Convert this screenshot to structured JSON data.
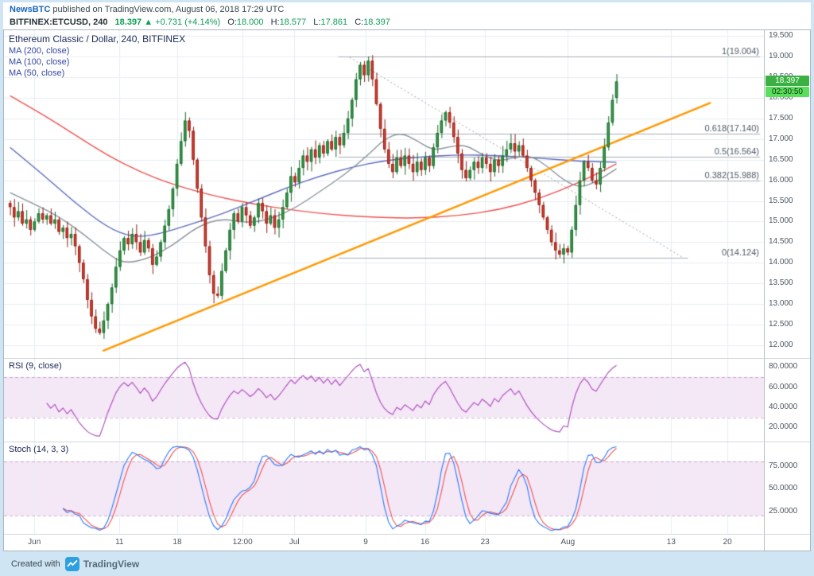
{
  "frame": {
    "published": {
      "brand": "NewsBTC",
      "text": " published on TradingView.com, August 06, 2018 17:29 UTC"
    },
    "footer": {
      "created_with": "Created with",
      "logo_text": "TradingView"
    },
    "bg_color": "#cfe5f4"
  },
  "symbol_bar": {
    "symbol": "BITFINEX:ETCUSD, 240",
    "last": "18.397",
    "arrow": "▲",
    "change": "+0.731 (+4.14%)",
    "o_label": "O:",
    "o": "18.000",
    "h_label": "H:",
    "h": "18.577",
    "l_label": "L:",
    "l": "17.861",
    "c_label": "C:",
    "c": "18.397",
    "green": "#0f9d58"
  },
  "chart_data": {
    "type": "candlestick",
    "title": "Ethereum Classic / Dollar, 240, BITFINEX",
    "y_range": [
      11.69,
      19.64
    ],
    "y_tick_labels": [
      "19.500",
      "19.000",
      "18.500",
      "18.000",
      "17.500",
      "17.000",
      "16.500",
      "16.000",
      "15.500",
      "15.000",
      "14.500",
      "14.000",
      "13.500",
      "13.000",
      "12.500",
      "12.000"
    ],
    "x_ticks": [
      {
        "label": "Jun",
        "x": 0.04
      },
      {
        "label": "11",
        "x": 0.152
      },
      {
        "label": "18",
        "x": 0.228
      },
      {
        "label": "12:00",
        "x": 0.314
      },
      {
        "label": "Jul",
        "x": 0.382
      },
      {
        "label": "9",
        "x": 0.476
      },
      {
        "label": "16",
        "x": 0.554
      },
      {
        "label": "23",
        "x": 0.633
      },
      {
        "label": "Aug",
        "x": 0.742
      },
      {
        "label": "13",
        "x": 0.878
      },
      {
        "label": "20",
        "x": 0.952
      }
    ],
    "candle_span": [
      0.008,
      0.806
    ],
    "first_open": 15.45,
    "closes": [
      15.35,
      15.1,
      15.25,
      14.95,
      15.05,
      14.8,
      15.0,
      15.2,
      15.05,
      15.15,
      14.95,
      15.05,
      14.75,
      14.85,
      14.6,
      14.7,
      14.4,
      14.0,
      13.6,
      13.1,
      12.7,
      12.4,
      12.3,
      12.6,
      13.0,
      13.4,
      13.9,
      14.3,
      14.6,
      14.45,
      14.7,
      14.5,
      14.25,
      14.55,
      14.35,
      13.95,
      14.15,
      14.5,
      14.9,
      15.3,
      15.8,
      16.4,
      16.95,
      17.45,
      17.2,
      16.5,
      15.8,
      15.1,
      14.4,
      13.7,
      13.25,
      13.2,
      13.8,
      14.3,
      14.8,
      15.2,
      15.0,
      15.35,
      15.15,
      14.9,
      15.1,
      15.45,
      15.25,
      14.95,
      15.15,
      14.85,
      15.05,
      15.35,
      15.7,
      16.1,
      15.95,
      16.3,
      16.6,
      16.45,
      16.75,
      16.55,
      16.85,
      16.65,
      16.95,
      16.75,
      17.05,
      16.85,
      17.15,
      17.5,
      17.95,
      18.45,
      18.8,
      18.55,
      18.9,
      18.45,
      17.85,
      17.25,
      16.75,
      16.4,
      16.2,
      16.55,
      16.35,
      16.6,
      16.4,
      16.2,
      16.45,
      16.25,
      16.55,
      16.35,
      16.8,
      17.15,
      17.45,
      17.65,
      17.4,
      17.05,
      16.65,
      16.25,
      16.05,
      16.25,
      16.45,
      16.3,
      16.55,
      16.4,
      16.2,
      16.5,
      16.35,
      16.6,
      16.75,
      16.9,
      16.7,
      16.85,
      16.6,
      16.3,
      16.0,
      15.7,
      15.4,
      15.1,
      14.8,
      14.5,
      14.3,
      14.2,
      14.35,
      14.25,
      14.8,
      15.4,
      16.0,
      16.45,
      16.3,
      16.0,
      15.9,
      16.3,
      16.8,
      17.4,
      17.95,
      18.4
    ],
    "last_candle": {
      "o": 18.0,
      "h": 18.577,
      "l": 17.861,
      "c": 18.397
    },
    "extremes": [
      {
        "i": 22,
        "low": 12.25
      },
      {
        "i": 88,
        "high": 19.004
      },
      {
        "i": 135,
        "low": 14.124
      }
    ],
    "ma": [
      {
        "name": "MA (200, close)",
        "color": "#ef5350",
        "points": [
          [
            0,
            18.05
          ],
          [
            8,
            17.6
          ],
          [
            16,
            17.1
          ],
          [
            24,
            16.6
          ],
          [
            32,
            16.2
          ],
          [
            40,
            15.9
          ],
          [
            50,
            15.62
          ],
          [
            60,
            15.42
          ],
          [
            70,
            15.27
          ],
          [
            80,
            15.16
          ],
          [
            90,
            15.1
          ],
          [
            100,
            15.08
          ],
          [
            110,
            15.14
          ],
          [
            120,
            15.28
          ],
          [
            130,
            15.55
          ],
          [
            140,
            15.95
          ],
          [
            149,
            16.4
          ]
        ]
      },
      {
        "name": "MA (100, close)",
        "color": "#5c6bc0",
        "points": [
          [
            0,
            16.8
          ],
          [
            8,
            16.15
          ],
          [
            16,
            15.45
          ],
          [
            24,
            14.85
          ],
          [
            30,
            14.62
          ],
          [
            36,
            14.68
          ],
          [
            44,
            14.92
          ],
          [
            52,
            15.18
          ],
          [
            60,
            15.5
          ],
          [
            68,
            15.82
          ],
          [
            76,
            16.1
          ],
          [
            84,
            16.32
          ],
          [
            92,
            16.48
          ],
          [
            100,
            16.56
          ],
          [
            110,
            16.62
          ],
          [
            120,
            16.6
          ],
          [
            130,
            16.54
          ],
          [
            140,
            16.46
          ],
          [
            149,
            16.44
          ]
        ]
      },
      {
        "name": "MA (50, close)",
        "color": "#8a939b",
        "points": [
          [
            0,
            15.7
          ],
          [
            6,
            15.42
          ],
          [
            12,
            15.12
          ],
          [
            18,
            14.7
          ],
          [
            24,
            14.22
          ],
          [
            28,
            13.98
          ],
          [
            34,
            14.1
          ],
          [
            40,
            14.42
          ],
          [
            46,
            14.88
          ],
          [
            52,
            15.08
          ],
          [
            58,
            14.96
          ],
          [
            64,
            15.06
          ],
          [
            70,
            15.32
          ],
          [
            76,
            15.72
          ],
          [
            82,
            16.12
          ],
          [
            88,
            16.62
          ],
          [
            92,
            17.0
          ],
          [
            96,
            17.16
          ],
          [
            100,
            16.96
          ],
          [
            104,
            16.72
          ],
          [
            108,
            16.82
          ],
          [
            112,
            16.86
          ],
          [
            116,
            16.62
          ],
          [
            120,
            16.46
          ],
          [
            124,
            16.56
          ],
          [
            128,
            16.6
          ],
          [
            132,
            16.34
          ],
          [
            136,
            16.0
          ],
          [
            140,
            15.82
          ],
          [
            144,
            15.96
          ],
          [
            149,
            16.28
          ]
        ]
      }
    ],
    "fib": [
      {
        "label": "1(19.004)",
        "value": 19.004,
        "x1": 0.44,
        "x2": 0.995
      },
      {
        "label": "0.618(17.140)",
        "value": 17.14,
        "x1": 0.44,
        "x2": 0.995
      },
      {
        "label": "0.5(16.564)",
        "value": 16.564,
        "x1": 0.44,
        "x2": 0.995
      },
      {
        "label": "0.382(15.988)",
        "value": 15.988,
        "x1": 0.44,
        "x2": 0.995
      },
      {
        "label": "0(14.124)",
        "value": 14.124,
        "x1": 0.44,
        "x2": 0.9
      }
    ],
    "trendlines": [
      {
        "style": "solid",
        "color": "#ff9800",
        "width": 2.5,
        "x1": 0.13,
        "y1": 11.86,
        "x2": 0.93,
        "y2": 17.88
      },
      {
        "style": "dashed",
        "color": "#9aa0a6",
        "width": 1,
        "x1": 0.455,
        "y1": 18.98,
        "x2": 0.893,
        "y2": 14.13
      }
    ],
    "badges": {
      "price": "18.397",
      "countdown": "02:30:50"
    },
    "colors": {
      "up": "#3fa34d",
      "up_border": "#17662b",
      "down": "#dc4437",
      "down_border": "#8e1d12",
      "grid": "#e9edf0",
      "fib": "#a6adb5",
      "fib_text": "#4e5966"
    },
    "indicators": {
      "rsi": {
        "label": "RSI (9, close)",
        "period": 9,
        "band": [
          30,
          70
        ],
        "range": [
          6,
          88
        ],
        "ticks": [
          "80.0000",
          "60.0000",
          "40.0000",
          "20.0000"
        ],
        "color": "#ab47bc"
      },
      "stoch": {
        "label": "Stoch (14, 3, 3)",
        "k": 14,
        "smooth": 3,
        "d": 3,
        "band": [
          20,
          80
        ],
        "range": [
          0,
          101
        ],
        "ticks": [
          "75.0000",
          "50.0000",
          "25.0000"
        ],
        "k_color": "#2979ff",
        "d_color": "#ef5350"
      }
    }
  }
}
